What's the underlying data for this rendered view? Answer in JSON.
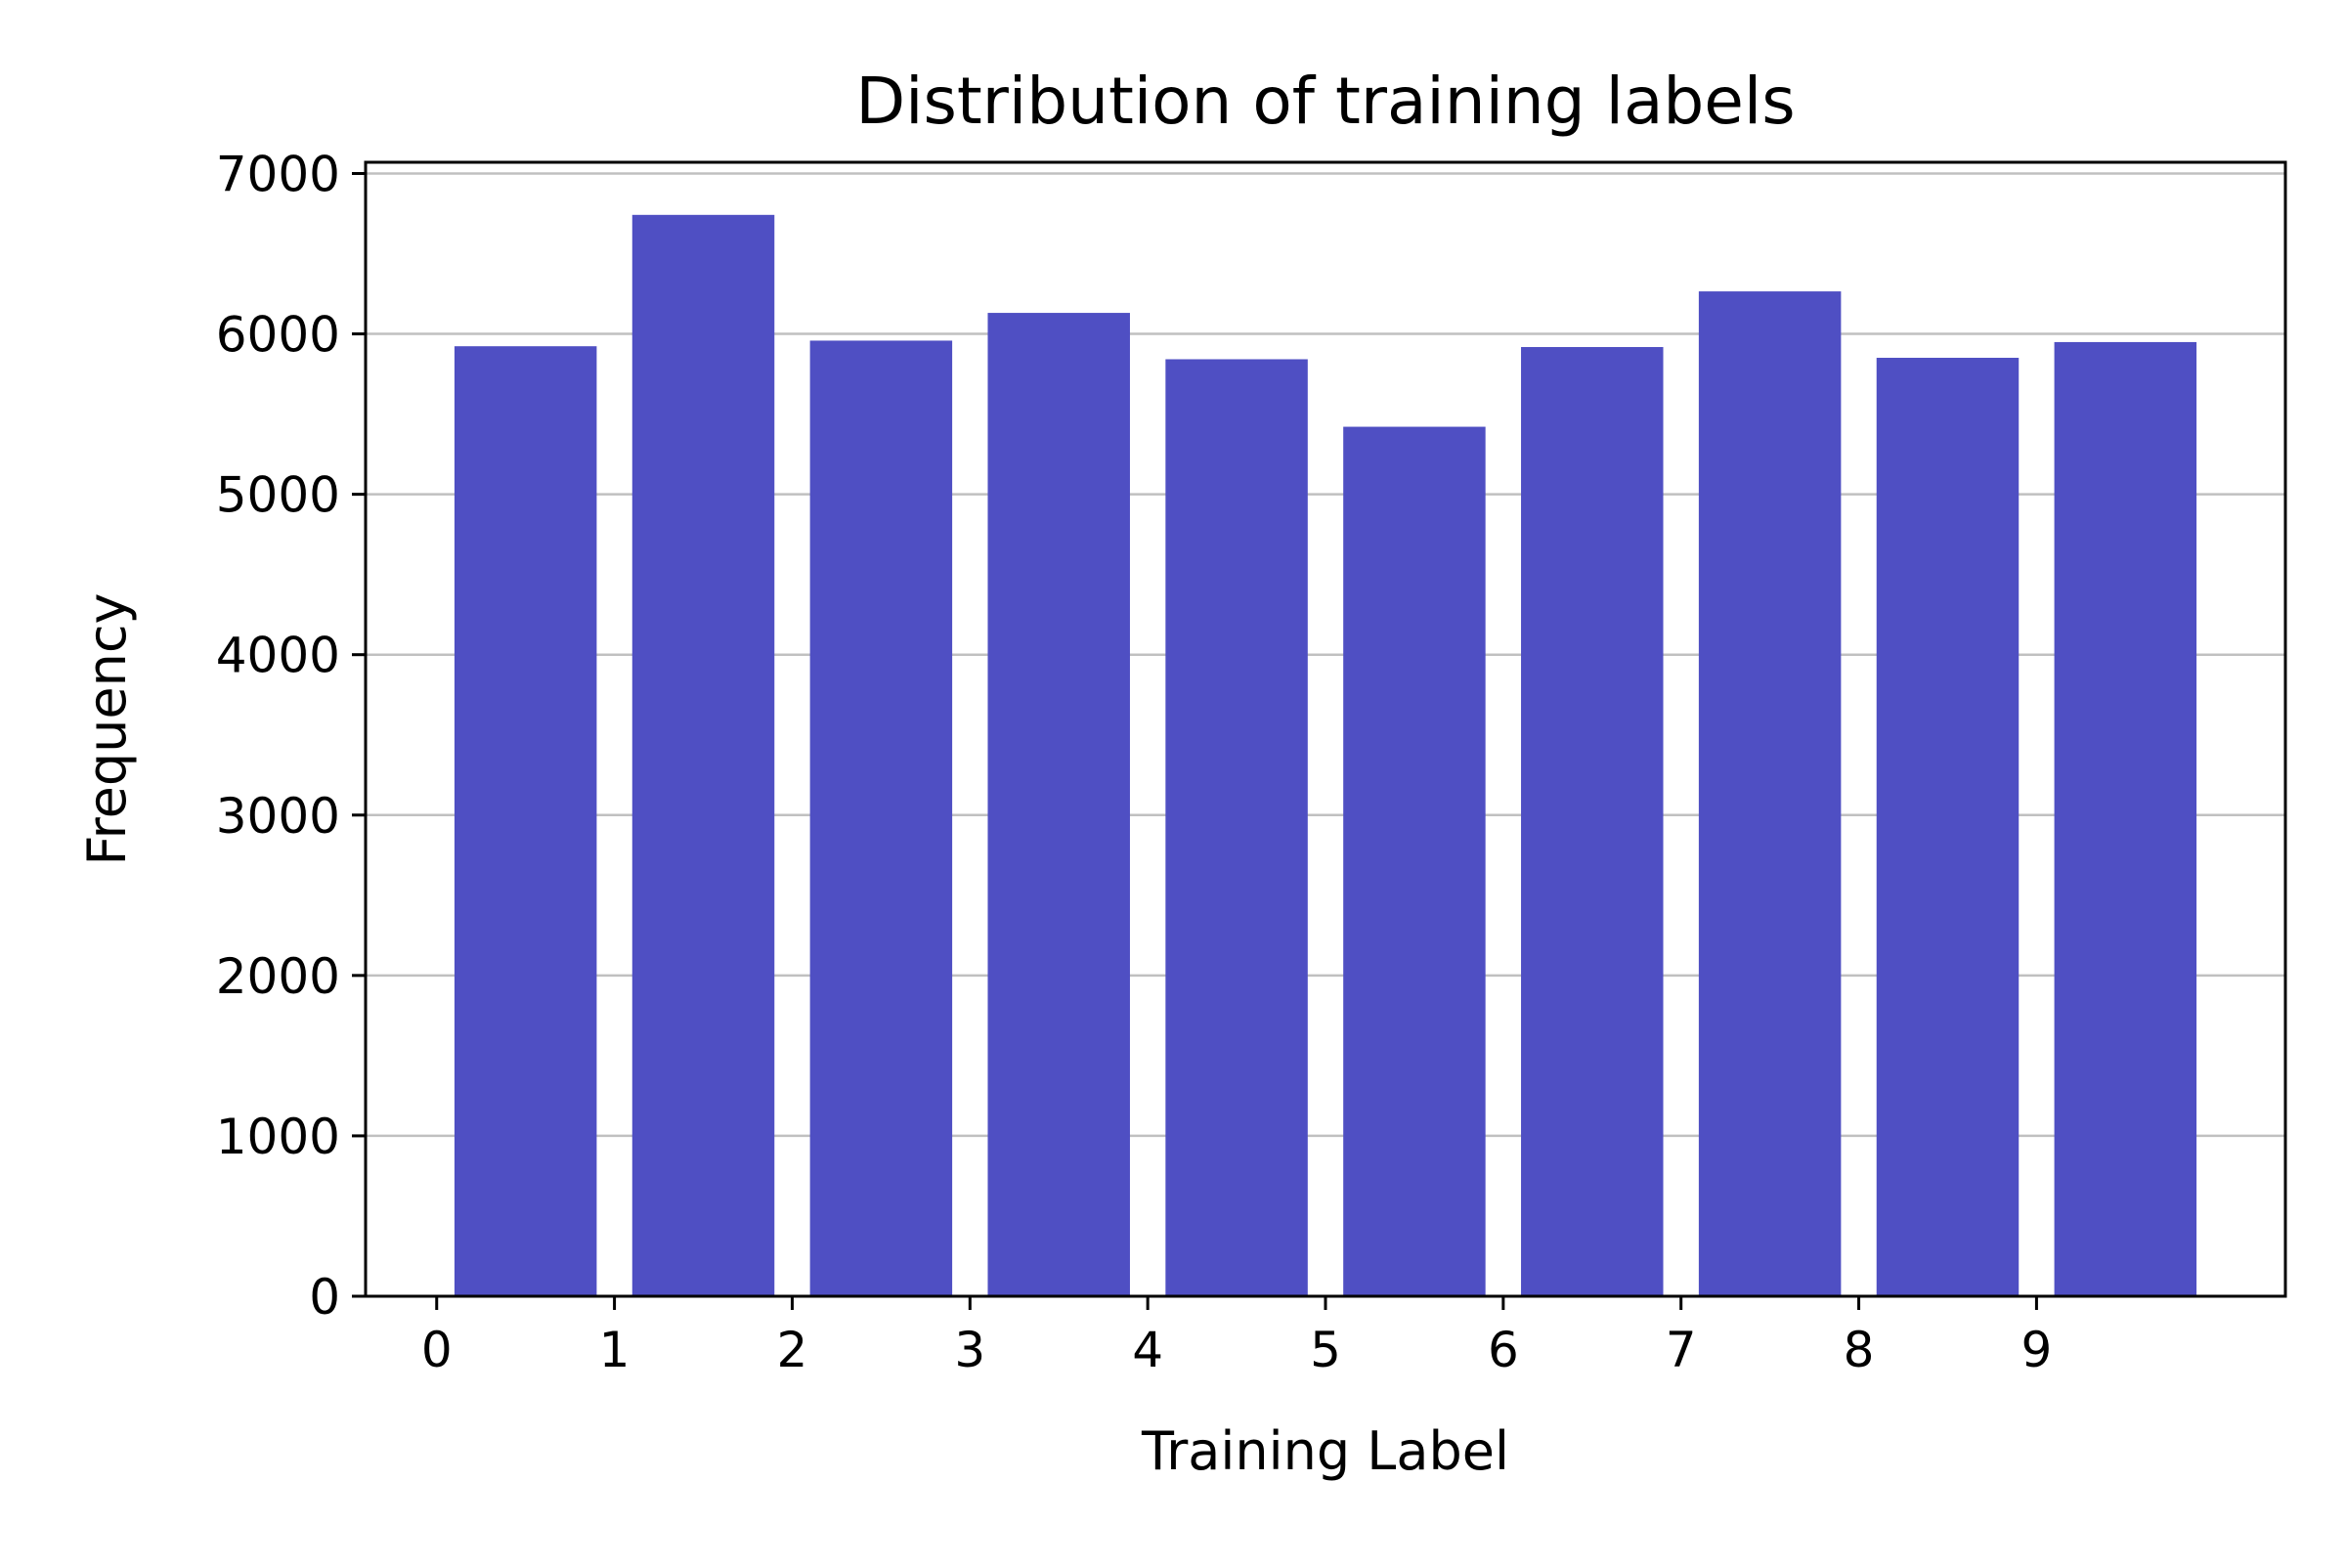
{
  "chart_data": {
    "type": "bar",
    "title": "Distribution of training labels",
    "xlabel": "Training Label",
    "ylabel": "Frequency",
    "categories": [
      "0",
      "1",
      "2",
      "3",
      "4",
      "5",
      "6",
      "7",
      "8",
      "9"
    ],
    "values": [
      5923,
      6742,
      5958,
      6131,
      5842,
      5421,
      5918,
      6265,
      5851,
      5949
    ],
    "xticks": [
      "0",
      "1",
      "2",
      "3",
      "4",
      "5",
      "6",
      "7",
      "8",
      "9"
    ],
    "yticks": [
      "0",
      "1000",
      "2000",
      "3000",
      "4000",
      "5000",
      "6000",
      "7000"
    ],
    "ylim": [
      0,
      7070
    ],
    "grid": "y",
    "bar_color": "#4f4fc3",
    "grid_color": "#c0c0c0"
  }
}
